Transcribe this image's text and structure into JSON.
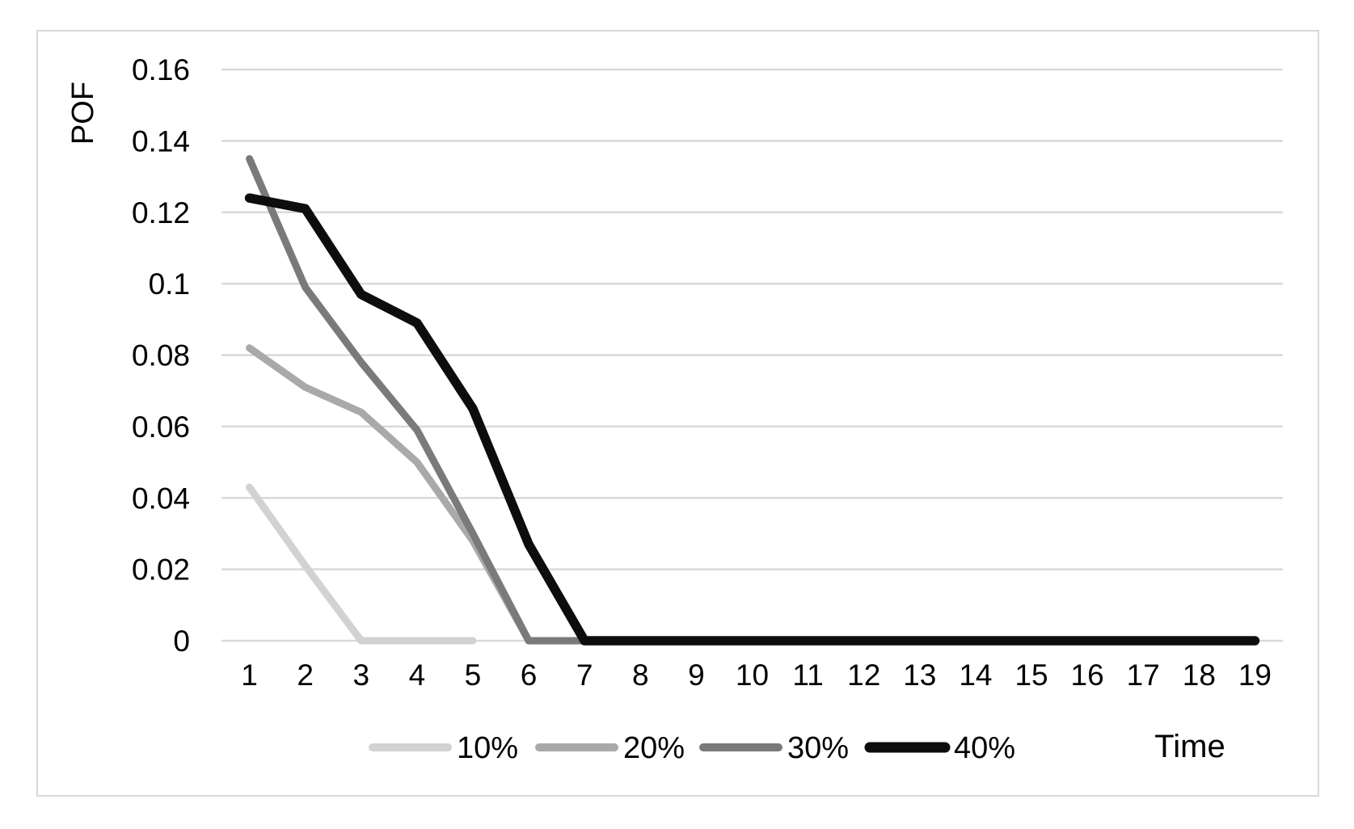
{
  "figure": {
    "kind": "excel-style line chart",
    "background_color": "#ffffff",
    "border_color": "#d9d9d9",
    "gridline_color": "#d9d9d9",
    "text_color": "#000000"
  },
  "y_axis": {
    "title": "POF",
    "tick_labels": [
      "0",
      "0.02",
      "0.04",
      "0.06",
      "0.08",
      "0.1",
      "0.12",
      "0.14",
      "0.16"
    ],
    "min": 0,
    "max": 0.16,
    "step": 0.02
  },
  "x_axis": {
    "title": "Time",
    "tick_labels": [
      "1",
      "2",
      "3",
      "4",
      "5",
      "6",
      "7",
      "8",
      "9",
      "10",
      "11",
      "12",
      "13",
      "14",
      "15",
      "16",
      "17",
      "18",
      "19"
    ]
  },
  "legend": {
    "position": "bottom",
    "items": [
      {
        "label": "10%",
        "color": "#d2d2d2"
      },
      {
        "label": "20%",
        "color": "#a9a9a9"
      },
      {
        "label": "30%",
        "color": "#7a7a7a"
      },
      {
        "label": "40%",
        "color": "#0d0d0d"
      }
    ]
  },
  "chart_data": {
    "type": "line",
    "title": "",
    "xlabel": "Time",
    "ylabel": "POF",
    "x": [
      1,
      2,
      3,
      4,
      5,
      6,
      7,
      8,
      9,
      10,
      11,
      12,
      13,
      14,
      15,
      16,
      17,
      18,
      19
    ],
    "ylim": [
      0,
      0.16
    ],
    "grid": true,
    "legend_position": "bottom",
    "series": [
      {
        "name": "10%",
        "color": "#d2d2d2",
        "values": [
          0.043,
          0.021,
          0,
          0,
          0
        ]
      },
      {
        "name": "20%",
        "color": "#a9a9a9",
        "values": [
          0.082,
          0.071,
          0.064,
          0.05,
          0.028,
          0
        ]
      },
      {
        "name": "30%",
        "color": "#7a7a7a",
        "values": [
          0.135,
          0.099,
          0.078,
          0.059,
          0.03,
          0,
          0,
          0,
          0,
          0,
          0,
          0,
          0,
          0,
          0,
          0,
          0,
          0,
          0
        ]
      },
      {
        "name": "40%",
        "color": "#0d0d0d",
        "values": [
          0.124,
          0.121,
          0.097,
          0.089,
          0.065,
          0.027,
          0,
          0,
          0,
          0,
          0,
          0,
          0,
          0,
          0,
          0,
          0,
          0,
          0
        ]
      }
    ]
  }
}
